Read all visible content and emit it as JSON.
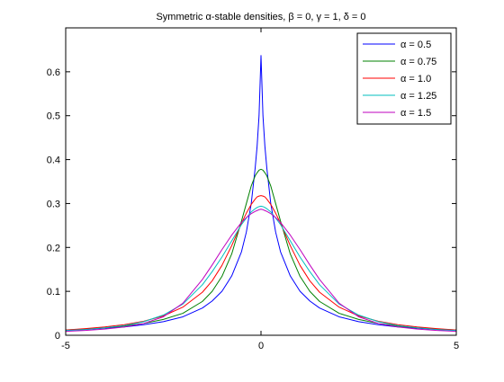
{
  "chart_data": {
    "type": "line",
    "title": "Symmetric α-stable densities, β = 0, γ = 1, δ = 0",
    "xlabel": "",
    "ylabel": "",
    "xlim": [
      -5,
      5
    ],
    "ylim": [
      0,
      0.7
    ],
    "x_ticks": [
      -5,
      0,
      5
    ],
    "y_ticks": [
      0,
      0.1,
      0.2,
      0.3,
      0.4,
      0.5,
      0.6
    ],
    "x_tick_labels": [
      "-5",
      "0",
      "5"
    ],
    "y_tick_labels": [
      "0",
      "0.1",
      "0.2",
      "0.3",
      "0.4",
      "0.5",
      "0.6"
    ],
    "grid": false,
    "legend_position": "top-right",
    "series": [
      {
        "name": "α = 0.5",
        "color": "#0000ff",
        "x": [
          -5,
          -4.5,
          -4,
          -3.5,
          -3,
          -2.5,
          -2,
          -1.5,
          -1.25,
          -1,
          -0.75,
          -0.5,
          -0.375,
          -0.25,
          -0.15,
          -0.1,
          -0.05,
          0,
          0.05,
          0.1,
          0.15,
          0.25,
          0.375,
          0.5,
          0.75,
          1,
          1.25,
          1.5,
          2,
          2.5,
          3,
          3.5,
          4,
          4.5,
          5
        ],
        "y": [
          0.011,
          0.013,
          0.016,
          0.019,
          0.024,
          0.031,
          0.042,
          0.062,
          0.078,
          0.1,
          0.135,
          0.19,
          0.235,
          0.3,
          0.38,
          0.43,
          0.5,
          0.637,
          0.5,
          0.43,
          0.38,
          0.3,
          0.235,
          0.19,
          0.135,
          0.1,
          0.078,
          0.062,
          0.042,
          0.031,
          0.024,
          0.019,
          0.016,
          0.013,
          0.011
        ]
      },
      {
        "name": "α = 0.75",
        "color": "#008000",
        "x": [
          -5,
          -4.5,
          -4,
          -3.5,
          -3,
          -2.5,
          -2,
          -1.5,
          -1.25,
          -1,
          -0.75,
          -0.5,
          -0.375,
          -0.25,
          -0.15,
          -0.1,
          -0.05,
          0,
          0.05,
          0.1,
          0.15,
          0.25,
          0.375,
          0.5,
          0.75,
          1,
          1.25,
          1.5,
          2,
          2.5,
          3,
          3.5,
          4,
          4.5,
          5
        ],
        "y": [
          0.012,
          0.014,
          0.017,
          0.021,
          0.027,
          0.036,
          0.05,
          0.077,
          0.1,
          0.134,
          0.185,
          0.26,
          0.3,
          0.34,
          0.363,
          0.37,
          0.376,
          0.378,
          0.376,
          0.37,
          0.363,
          0.34,
          0.3,
          0.26,
          0.185,
          0.134,
          0.1,
          0.077,
          0.05,
          0.036,
          0.027,
          0.021,
          0.017,
          0.014,
          0.012
        ]
      },
      {
        "name": "α = 1.0",
        "color": "#ff0000",
        "x": [
          -5,
          -4.5,
          -4,
          -3.5,
          -3,
          -2.5,
          -2,
          -1.5,
          -1.25,
          -1,
          -0.75,
          -0.5,
          -0.375,
          -0.25,
          -0.15,
          -0.1,
          -0.05,
          0,
          0.05,
          0.1,
          0.15,
          0.25,
          0.375,
          0.5,
          0.75,
          1,
          1.25,
          1.5,
          2,
          2.5,
          3,
          3.5,
          4,
          4.5,
          5
        ],
        "y": [
          0.012,
          0.015,
          0.019,
          0.024,
          0.032,
          0.044,
          0.064,
          0.098,
          0.124,
          0.159,
          0.204,
          0.255,
          0.278,
          0.298,
          0.31,
          0.315,
          0.317,
          0.318,
          0.317,
          0.315,
          0.31,
          0.298,
          0.278,
          0.255,
          0.204,
          0.159,
          0.124,
          0.098,
          0.064,
          0.044,
          0.032,
          0.024,
          0.019,
          0.015,
          0.012
        ]
      },
      {
        "name": "α = 1.25",
        "color": "#00bfbf",
        "x": [
          -5,
          -4.5,
          -4,
          -3.5,
          -3,
          -2.5,
          -2,
          -1.5,
          -1.25,
          -1,
          -0.75,
          -0.5,
          -0.375,
          -0.25,
          -0.15,
          -0.1,
          -0.05,
          0,
          0.05,
          0.1,
          0.15,
          0.25,
          0.375,
          0.5,
          0.75,
          1,
          1.25,
          1.5,
          2,
          2.5,
          3,
          3.5,
          4,
          4.5,
          5
        ],
        "y": [
          0.011,
          0.013,
          0.017,
          0.022,
          0.031,
          0.046,
          0.071,
          0.115,
          0.145,
          0.178,
          0.215,
          0.252,
          0.267,
          0.281,
          0.288,
          0.291,
          0.293,
          0.294,
          0.293,
          0.291,
          0.288,
          0.281,
          0.267,
          0.252,
          0.215,
          0.178,
          0.145,
          0.115,
          0.071,
          0.046,
          0.031,
          0.022,
          0.017,
          0.013,
          0.011
        ]
      },
      {
        "name": "α = 1.5",
        "color": "#bf00bf",
        "x": [
          -5,
          -4.5,
          -4,
          -3.5,
          -3,
          -2.5,
          -2,
          -1.5,
          -1.25,
          -1,
          -0.75,
          -0.5,
          -0.375,
          -0.25,
          -0.15,
          -0.1,
          -0.05,
          0,
          0.05,
          0.1,
          0.15,
          0.25,
          0.375,
          0.5,
          0.75,
          1,
          1.25,
          1.5,
          2,
          2.5,
          3,
          3.5,
          4,
          4.5,
          5
        ],
        "y": [
          0.009,
          0.011,
          0.014,
          0.019,
          0.027,
          0.042,
          0.073,
          0.127,
          0.16,
          0.195,
          0.228,
          0.257,
          0.268,
          0.277,
          0.282,
          0.284,
          0.286,
          0.287,
          0.286,
          0.284,
          0.282,
          0.277,
          0.268,
          0.257,
          0.228,
          0.195,
          0.16,
          0.127,
          0.073,
          0.042,
          0.027,
          0.019,
          0.014,
          0.011,
          0.009
        ]
      }
    ]
  }
}
